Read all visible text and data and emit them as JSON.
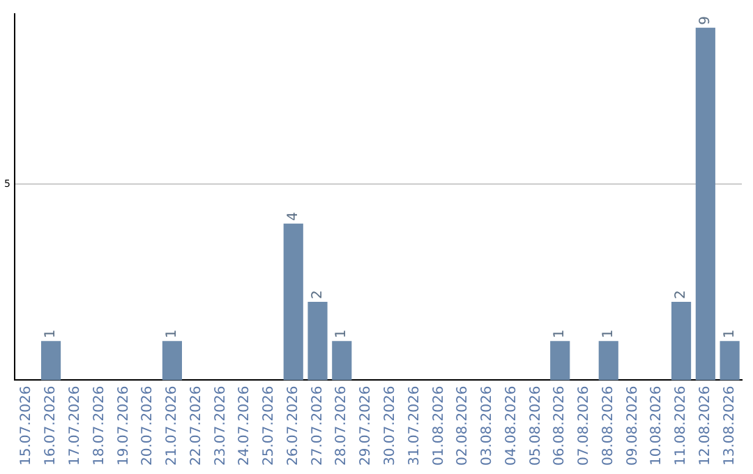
{
  "chart_data": {
    "type": "bar",
    "categories": [
      "15.07.2026",
      "16.07.2026",
      "17.07.2026",
      "18.07.2026",
      "19.07.2026",
      "20.07.2026",
      "21.07.2026",
      "22.07.2026",
      "23.07.2026",
      "24.07.2026",
      "25.07.2026",
      "26.07.2026",
      "27.07.2026",
      "28.07.2026",
      "29.07.2026",
      "30.07.2026",
      "31.07.2026",
      "01.08.2026",
      "02.08.2026",
      "03.08.2026",
      "04.08.2026",
      "05.08.2026",
      "06.08.2026",
      "07.08.2026",
      "08.08.2026",
      "09.08.2026",
      "10.08.2026",
      "11.08.2026",
      "12.08.2026",
      "13.08.2026"
    ],
    "values": [
      0,
      1,
      0,
      0,
      0,
      0,
      1,
      0,
      0,
      0,
      0,
      4,
      2,
      1,
      0,
      0,
      0,
      0,
      0,
      0,
      0,
      0,
      1,
      0,
      1,
      0,
      0,
      2,
      9,
      1
    ],
    "value_labels": [
      null,
      "1",
      null,
      null,
      null,
      null,
      "1",
      null,
      null,
      null,
      null,
      "4",
      "2",
      "1",
      null,
      null,
      null,
      null,
      null,
      null,
      null,
      null,
      "1",
      null,
      "1",
      null,
      null,
      "2",
      "9",
      "1"
    ],
    "color": "#6d8bac",
    "ylim": [
      0,
      9.35
    ],
    "yticks": [
      5
    ],
    "grid": "y",
    "legend": false
  }
}
